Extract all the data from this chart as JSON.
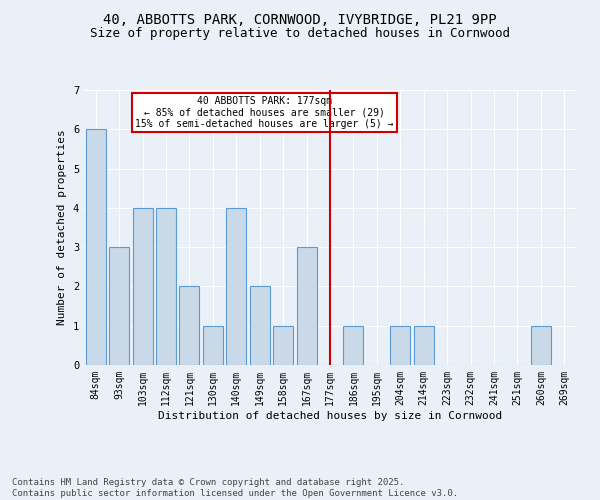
{
  "title1": "40, ABBOTTS PARK, CORNWOOD, IVYBRIDGE, PL21 9PP",
  "title2": "Size of property relative to detached houses in Cornwood",
  "xlabel": "Distribution of detached houses by size in Cornwood",
  "ylabel": "Number of detached properties",
  "bins": [
    "84sqm",
    "93sqm",
    "103sqm",
    "112sqm",
    "121sqm",
    "130sqm",
    "140sqm",
    "149sqm",
    "158sqm",
    "167sqm",
    "177sqm",
    "186sqm",
    "195sqm",
    "204sqm",
    "214sqm",
    "223sqm",
    "232sqm",
    "241sqm",
    "251sqm",
    "260sqm",
    "269sqm"
  ],
  "values": [
    6,
    3,
    4,
    4,
    2,
    1,
    4,
    2,
    1,
    3,
    0,
    1,
    0,
    1,
    1,
    0,
    0,
    0,
    0,
    1,
    0
  ],
  "bar_color": "#c9d9e8",
  "bar_edge_color": "#5b9bd5",
  "marker_x": "177sqm",
  "marker_color": "#cc0000",
  "annotation_text": "40 ABBOTTS PARK: 177sqm\n← 85% of detached houses are smaller (29)\n15% of semi-detached houses are larger (5) →",
  "annotation_box_edge": "#cc0000",
  "ylim": [
    0,
    7
  ],
  "yticks": [
    0,
    1,
    2,
    3,
    4,
    5,
    6,
    7
  ],
  "footnote": "Contains HM Land Registry data © Crown copyright and database right 2025.\nContains public sector information licensed under the Open Government Licence v3.0.",
  "bg_color": "#eaf0f8",
  "plot_bg_color": "#eaf0f8",
  "title_fontsize": 10,
  "subtitle_fontsize": 9,
  "axis_label_fontsize": 8,
  "tick_fontsize": 7,
  "footnote_fontsize": 6.5
}
